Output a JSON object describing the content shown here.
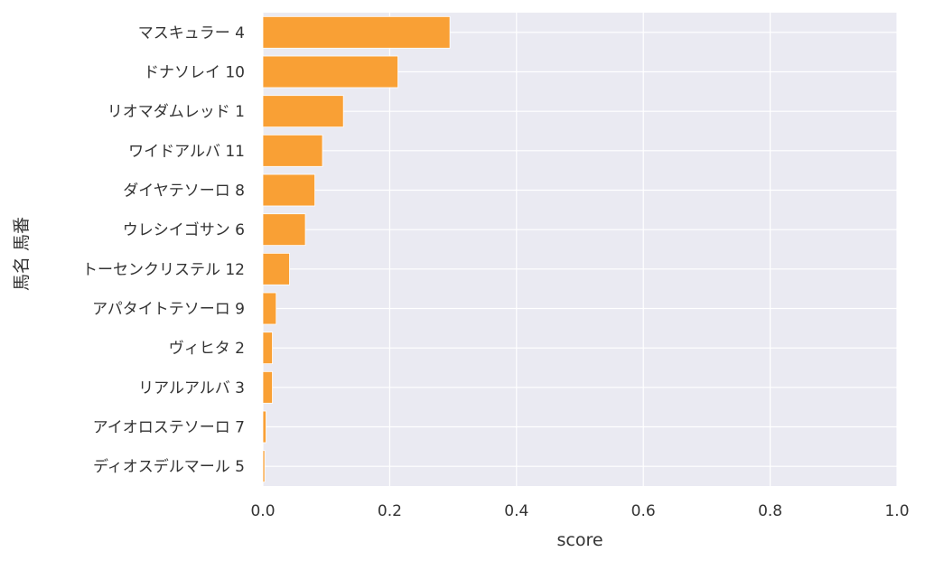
{
  "chart_data": {
    "type": "bar",
    "orientation": "horizontal",
    "categories": [
      "マスキュラー 4",
      "ドナソレイ 10",
      "リオマダムレッド 1",
      "ワイドアルバ 11",
      "ダイヤテソーロ 8",
      "ウレシイゴサン 6",
      "トーセンクリステル 12",
      "アパタイトテソーロ 9",
      "ヴィヒタ 2",
      "リアルアルバ 3",
      "アイオロステソーロ 7",
      "ディオスデルマール 5"
    ],
    "values": [
      0.295,
      0.213,
      0.127,
      0.094,
      0.082,
      0.067,
      0.042,
      0.021,
      0.015,
      0.015,
      0.005,
      0.003
    ],
    "xlabel": "score",
    "ylabel": "馬名 馬番",
    "xlim": [
      0,
      1.0
    ],
    "xticks": [
      "0.0",
      "0.2",
      "0.4",
      "0.6",
      "0.8",
      "1.0"
    ],
    "xtick_values": [
      0,
      0.2,
      0.4,
      0.6,
      0.8,
      1.0
    ],
    "grid": true,
    "colors": {
      "bar": "#f9a035",
      "bar_edge": "#ffffff",
      "plot_background": "#eaeaf2",
      "grid": "#ffffff"
    }
  }
}
